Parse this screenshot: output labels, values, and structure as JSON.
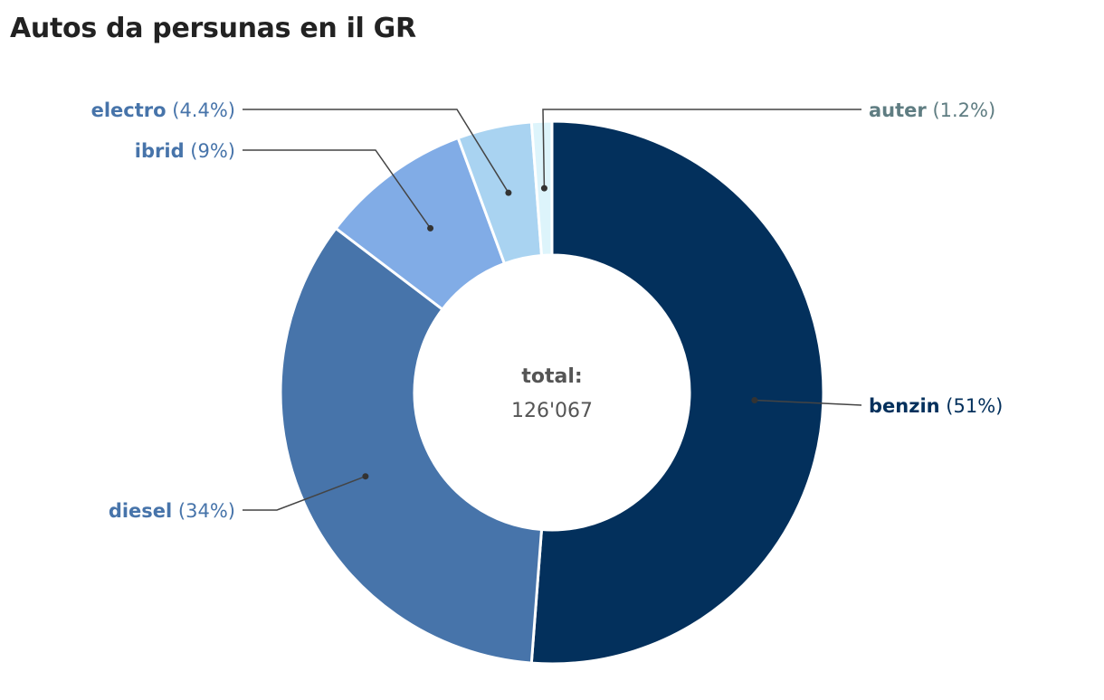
{
  "chart_data": {
    "type": "pie",
    "title": "Autos da persunas en il GR",
    "center_label": "total:",
    "center_value": "126'067",
    "slices": [
      {
        "name": "benzin",
        "percent_label": "(51%)",
        "value": 51,
        "color": "#03305c",
        "text_color": "#03305c",
        "label_side": "right"
      },
      {
        "name": "diesel",
        "percent_label": "(34%)",
        "value": 34,
        "color": "#4774aa",
        "text_color": "#4774aa",
        "label_side": "left"
      },
      {
        "name": "ibrid",
        "percent_label": "(9%)",
        "value": 9,
        "color": "#81ace6",
        "text_color": "#4774aa",
        "label_side": "left"
      },
      {
        "name": "electro",
        "percent_label": "(4.4%)",
        "value": 4.4,
        "color": "#a9d3f1",
        "text_color": "#4774aa",
        "label_side": "left"
      },
      {
        "name": "auter",
        "percent_label": "(1.2%)",
        "value": 1.2,
        "color": "#ddf4fb",
        "text_color": "#5f7d82",
        "label_side": "right"
      }
    ]
  }
}
